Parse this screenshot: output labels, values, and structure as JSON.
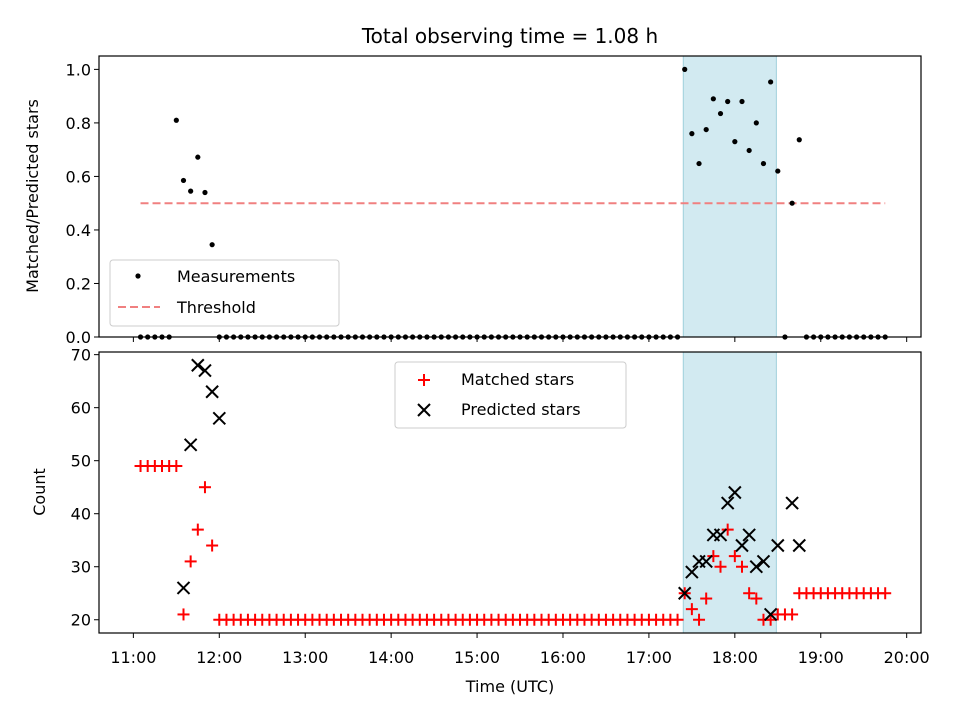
{
  "figure": {
    "title": "Total observing time = 1.08 h"
  },
  "chart_data": [
    {
      "type": "scatter",
      "ylabel": "Matched/Predicted stars",
      "xlim": [
        "10:36",
        "20:10"
      ],
      "ylim": [
        0,
        1.05
      ],
      "yticks": [
        "0.0",
        "0.2",
        "0.4",
        "0.6",
        "0.8",
        "1.0"
      ],
      "shaded_span": [
        "17:24",
        "18:29"
      ],
      "legend": {
        "position": "lower-left",
        "entries": [
          "Measurements",
          "Threshold"
        ]
      },
      "threshold": {
        "name": "Threshold",
        "value": 0.5,
        "x": [
          "11:05",
          "19:45"
        ],
        "color": "#f08080"
      },
      "measurements": {
        "name": "Measurements",
        "color": "#000000",
        "x": [
          "11:05",
          "11:10",
          "11:15",
          "11:20",
          "11:25",
          "11:30",
          "11:35",
          "11:40",
          "11:45",
          "11:50",
          "11:55",
          "12:00",
          "12:05",
          "12:10",
          "12:15",
          "12:20",
          "12:25",
          "12:30",
          "12:35",
          "12:40",
          "12:45",
          "12:50",
          "12:55",
          "13:00",
          "13:05",
          "13:10",
          "13:15",
          "13:20",
          "13:25",
          "13:30",
          "13:35",
          "13:40",
          "13:45",
          "13:50",
          "13:55",
          "14:00",
          "14:05",
          "14:10",
          "14:15",
          "14:20",
          "14:25",
          "14:30",
          "14:35",
          "14:40",
          "14:45",
          "14:50",
          "14:55",
          "15:00",
          "15:05",
          "15:10",
          "15:15",
          "15:20",
          "15:25",
          "15:30",
          "15:35",
          "15:40",
          "15:45",
          "15:50",
          "15:55",
          "16:00",
          "16:05",
          "16:10",
          "16:15",
          "16:20",
          "16:25",
          "16:30",
          "16:35",
          "16:40",
          "16:45",
          "16:50",
          "16:55",
          "17:00",
          "17:05",
          "17:10",
          "17:15",
          "17:20",
          "17:25",
          "17:30",
          "17:35",
          "17:40",
          "17:45",
          "17:50",
          "17:55",
          "18:00",
          "18:05",
          "18:10",
          "18:15",
          "18:20",
          "18:25",
          "18:30",
          "18:35",
          "18:40",
          "18:45",
          "18:50",
          "18:55",
          "19:00",
          "19:05",
          "19:10",
          "19:15",
          "19:20",
          "19:25",
          "19:30",
          "19:35",
          "19:40",
          "19:45"
        ],
        "y": [
          0,
          0,
          0,
          0,
          0,
          0.81,
          0.585,
          0.545,
          0.672,
          0.54,
          0.345,
          0,
          0,
          0,
          0,
          0,
          0,
          0,
          0,
          0,
          0,
          0,
          0,
          0,
          0,
          0,
          0,
          0,
          0,
          0,
          0,
          0,
          0,
          0,
          0,
          0,
          0,
          0,
          0,
          0,
          0,
          0,
          0,
          0,
          0,
          0,
          0,
          0,
          0,
          0,
          0,
          0,
          0,
          0,
          0,
          0,
          0,
          0,
          0,
          0,
          0,
          0,
          0,
          0,
          0,
          0,
          0,
          0,
          0,
          0,
          0,
          0,
          0,
          0,
          0,
          0,
          1.0,
          0.76,
          0.648,
          0.775,
          0.89,
          0.835,
          0.88,
          0.73,
          0.88,
          0.697,
          0.8,
          0.648,
          0.953,
          0.62,
          0,
          0.5,
          0.737,
          0,
          0,
          0,
          0,
          0,
          0,
          0,
          0,
          0,
          0,
          0,
          0
        ]
      }
    },
    {
      "type": "scatter",
      "xlabel": "Time (UTC)",
      "ylabel": "Count",
      "xlim": [
        "10:36",
        "20:10"
      ],
      "ylim": [
        17.5,
        70.5
      ],
      "xticks": [
        "11:00",
        "12:00",
        "13:00",
        "14:00",
        "15:00",
        "16:00",
        "17:00",
        "18:00",
        "19:00",
        "20:00"
      ],
      "yticks": [
        "20",
        "30",
        "40",
        "50",
        "60",
        "70"
      ],
      "shaded_span": [
        "17:24",
        "18:29"
      ],
      "legend": {
        "position": "upper-center",
        "entries": [
          "Matched stars",
          "Predicted stars"
        ]
      },
      "series": [
        {
          "name": "Matched stars",
          "marker": "plus",
          "color": "#ff0000",
          "x": [
            "11:05",
            "11:10",
            "11:15",
            "11:20",
            "11:25",
            "11:30",
            "11:35",
            "11:40",
            "11:45",
            "11:50",
            "11:55",
            "12:00",
            "12:05",
            "12:10",
            "12:15",
            "12:20",
            "12:25",
            "12:30",
            "12:35",
            "12:40",
            "12:45",
            "12:50",
            "12:55",
            "13:00",
            "13:05",
            "13:10",
            "13:15",
            "13:20",
            "13:25",
            "13:30",
            "13:35",
            "13:40",
            "13:45",
            "13:50",
            "13:55",
            "14:00",
            "14:05",
            "14:10",
            "14:15",
            "14:20",
            "14:25",
            "14:30",
            "14:35",
            "14:40",
            "14:45",
            "14:50",
            "14:55",
            "15:00",
            "15:05",
            "15:10",
            "15:15",
            "15:20",
            "15:25",
            "15:30",
            "15:35",
            "15:40",
            "15:45",
            "15:50",
            "15:55",
            "16:00",
            "16:05",
            "16:10",
            "16:15",
            "16:20",
            "16:25",
            "16:30",
            "16:35",
            "16:40",
            "16:45",
            "16:50",
            "16:55",
            "17:00",
            "17:05",
            "17:10",
            "17:15",
            "17:20",
            "17:25",
            "17:30",
            "17:35",
            "17:40",
            "17:45",
            "17:50",
            "17:55",
            "18:00",
            "18:05",
            "18:10",
            "18:15",
            "18:20",
            "18:25",
            "18:30",
            "18:35",
            "18:40",
            "18:45",
            "18:50",
            "18:55",
            "19:00",
            "19:05",
            "19:10",
            "19:15",
            "19:20",
            "19:25",
            "19:30",
            "19:35",
            "19:40",
            "19:45"
          ],
          "y": [
            49,
            49,
            49,
            49,
            49,
            49,
            21,
            31,
            37,
            45,
            34,
            20,
            20,
            20,
            20,
            20,
            20,
            20,
            20,
            20,
            20,
            20,
            20,
            20,
            20,
            20,
            20,
            20,
            20,
            20,
            20,
            20,
            20,
            20,
            20,
            20,
            20,
            20,
            20,
            20,
            20,
            20,
            20,
            20,
            20,
            20,
            20,
            20,
            20,
            20,
            20,
            20,
            20,
            20,
            20,
            20,
            20,
            20,
            20,
            20,
            20,
            20,
            20,
            20,
            20,
            20,
            20,
            20,
            20,
            20,
            20,
            20,
            20,
            20,
            20,
            20,
            25,
            22,
            20,
            24,
            32,
            30,
            37,
            32,
            30,
            25,
            24,
            20,
            20,
            21,
            21,
            21,
            25,
            25,
            25,
            25,
            25,
            25,
            25,
            25,
            25,
            25,
            25,
            25,
            25
          ]
        },
        {
          "name": "Predicted stars",
          "marker": "x",
          "color": "#000000",
          "x": [
            "11:35",
            "11:40",
            "11:45",
            "11:50",
            "11:55",
            "12:00",
            "17:25",
            "17:30",
            "17:35",
            "17:40",
            "17:45",
            "17:50",
            "17:55",
            "18:00",
            "18:05",
            "18:10",
            "18:15",
            "18:20",
            "18:25",
            "18:30",
            "18:40",
            "18:45"
          ],
          "y": [
            26,
            53,
            68,
            67,
            63,
            58,
            25,
            29,
            31,
            31,
            36,
            36,
            42,
            44,
            34,
            36,
            30,
            31,
            21,
            34,
            42,
            34
          ]
        }
      ]
    }
  ]
}
